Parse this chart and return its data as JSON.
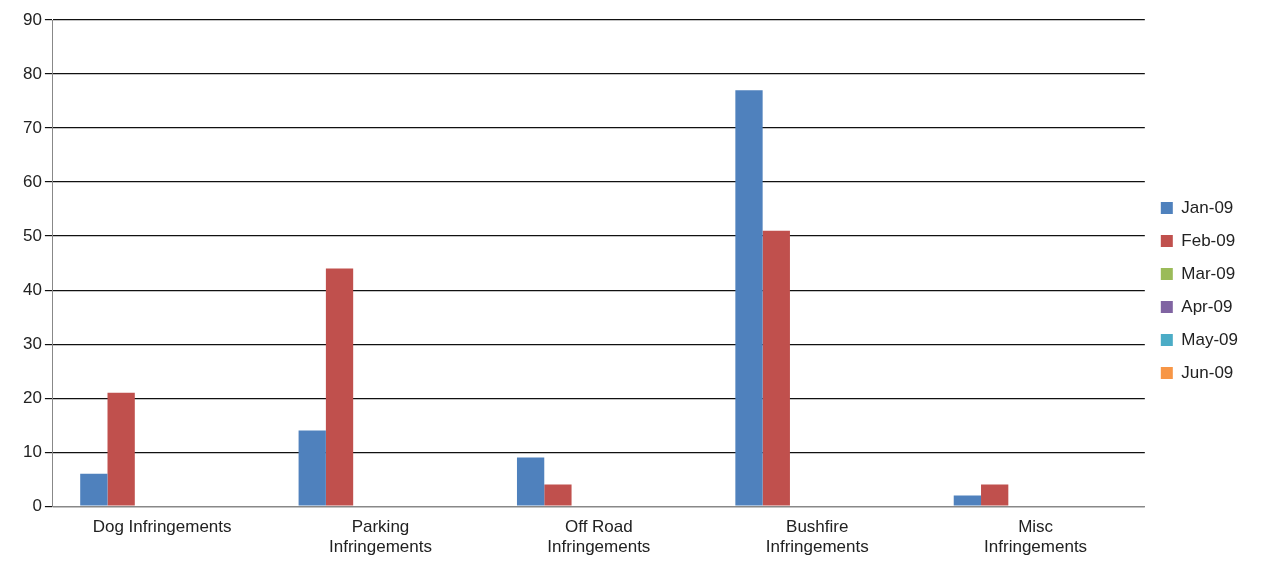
{
  "chart_data": {
    "type": "bar",
    "categories": [
      "Dog Infringements",
      "Parking Infringements",
      "Off Road Infringements",
      "Bushfire Infringements",
      "Misc Infringements"
    ],
    "series": [
      {
        "name": "Jan-09",
        "color": "#4f81bd",
        "values": [
          6,
          14,
          9,
          77,
          2
        ]
      },
      {
        "name": "Feb-09",
        "color": "#c0504d",
        "values": [
          21,
          44,
          4,
          51,
          4
        ]
      },
      {
        "name": "Mar-09",
        "color": "#9bbb59",
        "values": [
          null,
          null,
          null,
          null,
          null
        ]
      },
      {
        "name": "Apr-09",
        "color": "#8064a2",
        "values": [
          null,
          null,
          null,
          null,
          null
        ]
      },
      {
        "name": "May-09",
        "color": "#4bacc6",
        "values": [
          null,
          null,
          null,
          null,
          null
        ]
      },
      {
        "name": "Jun-09",
        "color": "#f79646",
        "values": [
          null,
          null,
          null,
          null,
          null
        ]
      }
    ],
    "ylim": [
      0,
      90
    ],
    "yticks": [
      0,
      10,
      20,
      30,
      40,
      50,
      60,
      70,
      80,
      90
    ],
    "grid": "y",
    "legend": "right"
  }
}
